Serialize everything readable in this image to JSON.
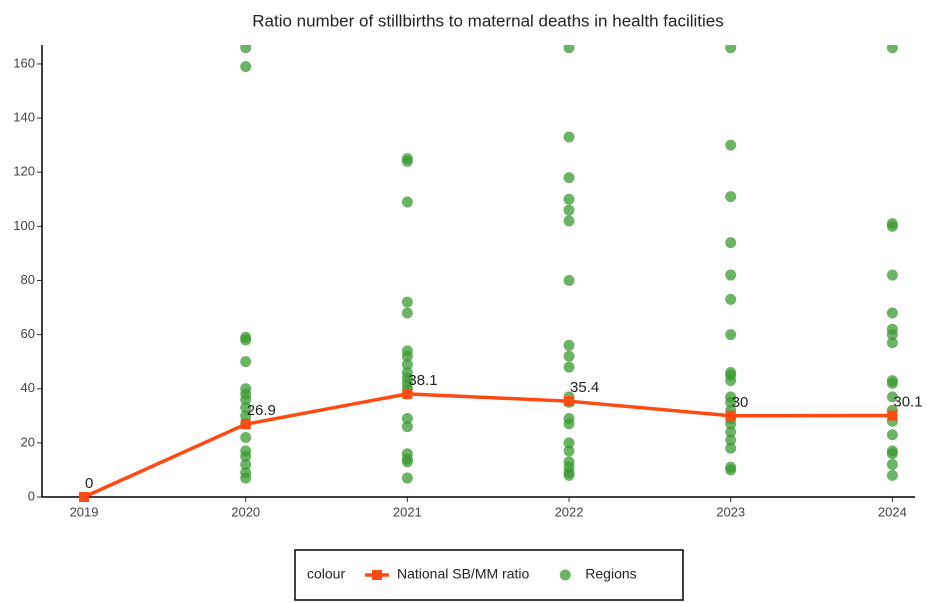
{
  "chart_data": {
    "type": "line",
    "title": "Ratio number of stillbirths to maternal deaths in health facilities",
    "xlim": [
      2018.74,
      2024.14
    ],
    "xticks": [
      2019,
      2020,
      2021,
      2022,
      2023,
      2024
    ],
    "ylim": [
      0,
      167
    ],
    "yticks": [
      0,
      20,
      40,
      60,
      80,
      100,
      120,
      140,
      160
    ],
    "grid": false,
    "legend_title": "colour",
    "legend_position": "bottom",
    "series": [
      {
        "name": "National SB/MM ratio",
        "type": "line",
        "color": "#ff4a12",
        "x": [
          2019,
          2020,
          2021,
          2022,
          2023,
          2024
        ],
        "values": [
          0,
          26.9,
          38.1,
          35.4,
          30,
          30.1
        ]
      },
      {
        "name": "Regions",
        "type": "scatter",
        "color": "#3a9a32",
        "x": [
          2020,
          2020,
          2020,
          2020,
          2020,
          2020,
          2020,
          2020,
          2020,
          2020,
          2020,
          2020,
          2020,
          2020,
          2020,
          2020,
          2020,
          2021,
          2021,
          2021,
          2021,
          2021,
          2021,
          2021,
          2021,
          2021,
          2021,
          2021,
          2021,
          2021,
          2021,
          2021,
          2021,
          2021,
          2021,
          2021,
          2022,
          2022,
          2022,
          2022,
          2022,
          2022,
          2022,
          2022,
          2022,
          2022,
          2022,
          2022,
          2022,
          2022,
          2022,
          2022,
          2022,
          2022,
          2022,
          2022,
          2023,
          2023,
          2023,
          2023,
          2023,
          2023,
          2023,
          2023,
          2023,
          2023,
          2023,
          2023,
          2023,
          2023,
          2023,
          2023,
          2023,
          2023,
          2023,
          2023,
          2024,
          2024,
          2024,
          2024,
          2024,
          2024,
          2024,
          2024,
          2024,
          2024,
          2024,
          2024,
          2024,
          2024,
          2024,
          2024,
          2024,
          2024
        ],
        "values": [
          166,
          159,
          59,
          58,
          50,
          40,
          38,
          36,
          33,
          30,
          27,
          22,
          17,
          15,
          12,
          9,
          7,
          124,
          125,
          109,
          72,
          68,
          54,
          52,
          49,
          46,
          44,
          42,
          40,
          38,
          29,
          26,
          16,
          14,
          13,
          7,
          166,
          133,
          118,
          110,
          106,
          102,
          80,
          56,
          52,
          48,
          37,
          35,
          29,
          27,
          20,
          17,
          13,
          11,
          9,
          8,
          166,
          130,
          111,
          94,
          82,
          73,
          60,
          46,
          45,
          43,
          37,
          35,
          32,
          29,
          27,
          24,
          21,
          18,
          11,
          10,
          166,
          101,
          100,
          82,
          68,
          62,
          60,
          57,
          43,
          42,
          37,
          32,
          28,
          23,
          17,
          16,
          12,
          8
        ]
      }
    ]
  }
}
